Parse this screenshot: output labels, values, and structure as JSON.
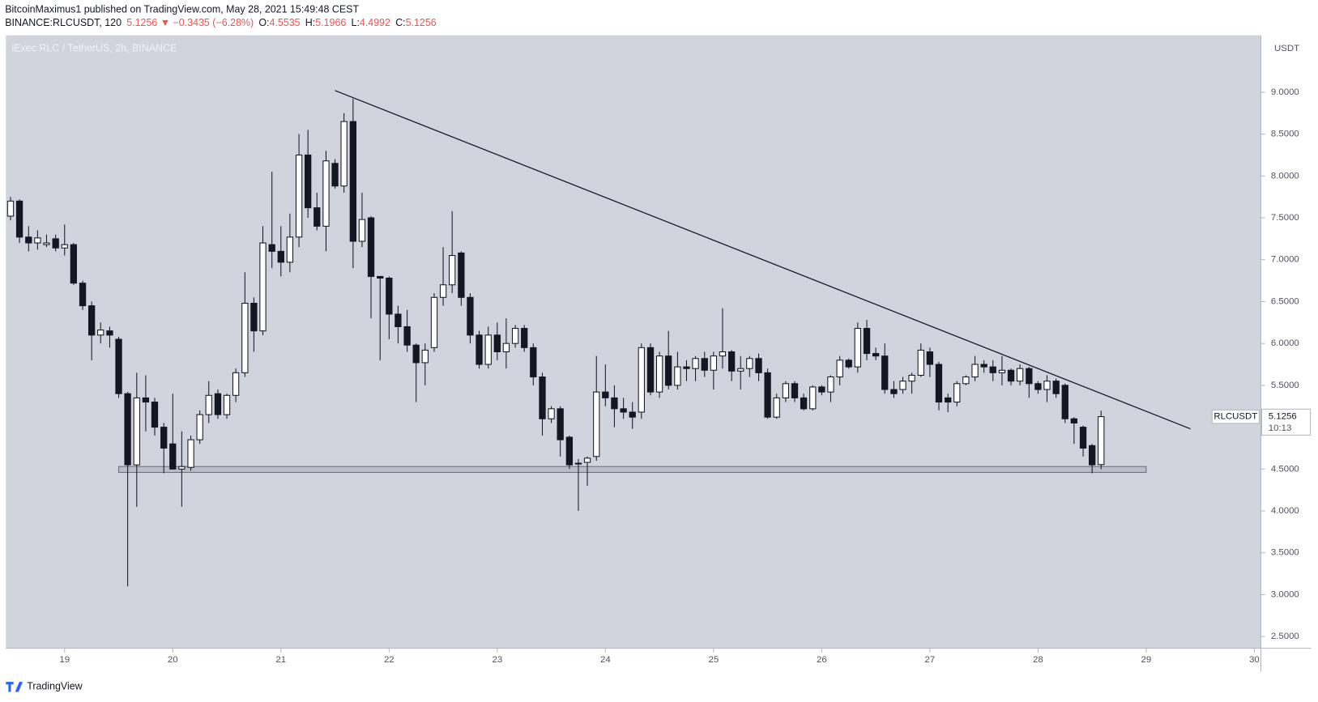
{
  "header": {
    "author_line": "BitcoinMaximus1 published on TradingView.com, May 28, 2021 15:49:48 CEST",
    "symbol": "BINANCE:RLCUSDT, 120",
    "price_change": "5.1256 ▼ −0.3435 (−6.28%)",
    "ohlc": [
      {
        "label": "O:",
        "value": "4.5535"
      },
      {
        "label": "H:",
        "value": "5.1966"
      },
      {
        "label": "L:",
        "value": "4.4992"
      },
      {
        "label": "C:",
        "value": "5.1256"
      }
    ]
  },
  "footer": {
    "brand": "TradingView"
  },
  "chart_data": {
    "type": "candlestick",
    "title": "iExec RLC / TetherUS, 2h, BINANCE",
    "currency": "USDT",
    "x": [
      18.5,
      18.583,
      18.667,
      18.75,
      18.833,
      18.917,
      19,
      19.083,
      19.167,
      19.25,
      19.333,
      19.417,
      19.5,
      19.583,
      19.667,
      19.75,
      19.833,
      19.917,
      20,
      20.083,
      20.167,
      20.25,
      20.333,
      20.417,
      20.5,
      20.583,
      20.667,
      20.75,
      20.833,
      20.917,
      21,
      21.083,
      21.167,
      21.25,
      21.333,
      21.417,
      21.5,
      21.583,
      21.667,
      21.75,
      21.833,
      21.917,
      22,
      22.083,
      22.167,
      22.25,
      22.333,
      22.417,
      22.5,
      22.583,
      22.667,
      22.75,
      22.833,
      22.917,
      23,
      23.083,
      23.167,
      23.25,
      23.333,
      23.417,
      23.5,
      23.583,
      23.667,
      23.75,
      23.833,
      23.917,
      24,
      24.083,
      24.167,
      24.25,
      24.333,
      24.417,
      24.5,
      24.583,
      24.667,
      24.75,
      24.833,
      24.917,
      25,
      25.083,
      25.167,
      25.25,
      25.333,
      25.417,
      25.5,
      25.583,
      25.667,
      25.75,
      25.833,
      25.917,
      26,
      26.083,
      26.167,
      26.25,
      26.333,
      26.417,
      26.5,
      26.583,
      26.667,
      26.75,
      26.833,
      26.917,
      27,
      27.083,
      27.167,
      27.25,
      27.333,
      27.417,
      27.5,
      27.583,
      27.667,
      27.75,
      27.833,
      27.917,
      28,
      28.083,
      28.167,
      28.25,
      28.333,
      28.417,
      28.5,
      28.583
    ],
    "open": [
      7.52,
      7.7,
      7.27,
      7.2,
      7.18,
      7.25,
      7.14,
      7.18,
      6.72,
      6.45,
      6.1,
      6.15,
      6.05,
      5.4,
      4.55,
      5.35,
      5.3,
      5.0,
      4.8,
      4.5,
      4.52,
      4.85,
      5.15,
      5.4,
      5.15,
      5.38,
      5.65,
      6.48,
      6.15,
      7.18,
      7.1,
      6.97,
      7.27,
      8.25,
      7.62,
      7.4,
      8.15,
      7.88,
      8.65,
      7.22,
      7.5,
      6.8,
      6.78,
      6.35,
      6.2,
      5.98,
      5.77,
      5.95,
      6.55,
      6.7,
      7.08,
      6.55,
      6.1,
      5.75,
      6.1,
      5.9,
      6.0,
      6.18,
      5.95,
      5.6,
      5.1,
      5.22,
      4.88,
      4.57,
      4.58,
      4.65,
      5.42,
      5.35,
      5.22,
      5.18,
      5.18,
      5.95,
      5.42,
      5.85,
      5.5,
      5.72,
      5.7,
      5.82,
      5.68,
      5.85,
      5.9,
      5.67,
      5.7,
      5.82,
      5.65,
      5.12,
      5.35,
      5.52,
      5.35,
      5.22,
      5.48,
      5.42,
      5.6,
      5.8,
      5.72,
      6.18,
      5.88,
      5.85,
      5.45,
      5.45,
      5.55,
      5.62,
      5.9,
      5.75,
      5.35,
      5.3,
      5.52,
      5.6,
      5.75,
      5.72,
      5.65,
      5.68,
      5.55,
      5.7,
      5.52,
      5.45,
      5.55,
      5.5,
      5.1,
      5.0,
      4.78,
      4.5535
    ],
    "high": [
      7.75,
      7.72,
      7.4,
      7.35,
      7.3,
      7.3,
      7.42,
      7.2,
      6.75,
      6.5,
      6.25,
      6.2,
      6.08,
      5.42,
      5.65,
      5.62,
      5.35,
      5.05,
      5.4,
      4.95,
      4.9,
      5.2,
      5.55,
      5.45,
      5.4,
      5.7,
      6.85,
      6.55,
      7.4,
      8.05,
      7.4,
      7.55,
      8.5,
      8.55,
      7.8,
      8.3,
      8.2,
      8.75,
      8.92,
      7.8,
      7.52,
      6.8,
      6.8,
      6.45,
      6.4,
      6.0,
      6.0,
      6.6,
      7.15,
      7.58,
      7.1,
      6.6,
      6.15,
      6.2,
      6.25,
      6.3,
      6.22,
      6.22,
      6.0,
      5.65,
      5.25,
      5.25,
      4.9,
      4.62,
      4.65,
      5.85,
      5.75,
      5.5,
      5.35,
      5.3,
      6.0,
      6.0,
      5.9,
      6.15,
      5.9,
      5.8,
      5.85,
      5.9,
      5.9,
      6.42,
      5.92,
      5.85,
      5.85,
      5.88,
      5.7,
      5.4,
      5.55,
      5.55,
      5.4,
      5.5,
      5.5,
      5.62,
      5.85,
      5.82,
      6.25,
      6.28,
      5.95,
      6.0,
      5.55,
      5.6,
      5.65,
      6.0,
      5.95,
      5.78,
      5.4,
      5.55,
      5.62,
      5.85,
      5.8,
      5.8,
      5.85,
      5.7,
      5.75,
      5.72,
      5.55,
      5.62,
      5.58,
      5.52,
      5.12,
      5.02,
      4.8,
      5.1966
    ],
    "low": [
      7.47,
      7.2,
      7.1,
      7.12,
      7.15,
      7.1,
      7.05,
      6.7,
      6.4,
      5.8,
      6.0,
      5.95,
      5.35,
      3.1,
      4.05,
      4.95,
      4.9,
      4.45,
      4.5,
      4.05,
      4.48,
      4.8,
      5.05,
      5.1,
      5.1,
      5.3,
      5.6,
      5.9,
      6.1,
      6.9,
      6.8,
      6.85,
      7.15,
      7.5,
      7.35,
      7.1,
      7.85,
      7.8,
      6.9,
      7.15,
      6.3,
      5.8,
      6.05,
      6.0,
      5.9,
      5.3,
      5.5,
      5.9,
      6.45,
      6.6,
      6.45,
      6.0,
      5.7,
      5.7,
      5.8,
      5.7,
      5.95,
      5.9,
      5.5,
      4.9,
      5.05,
      4.65,
      4.5,
      4.0,
      4.3,
      4.6,
      5.25,
      5.0,
      5.1,
      4.98,
      5.1,
      5.38,
      5.35,
      5.45,
      5.45,
      5.55,
      5.55,
      5.6,
      5.45,
      5.7,
      5.55,
      5.45,
      5.6,
      5.55,
      5.1,
      5.1,
      5.3,
      5.3,
      5.2,
      5.2,
      5.38,
      5.3,
      5.5,
      5.7,
      5.65,
      5.8,
      5.8,
      5.4,
      5.35,
      5.4,
      5.4,
      5.6,
      5.6,
      5.2,
      5.18,
      5.25,
      5.5,
      5.55,
      5.65,
      5.55,
      5.5,
      5.5,
      5.5,
      5.35,
      5.4,
      5.3,
      5.35,
      5.05,
      4.8,
      4.65,
      4.45,
      4.4992
    ],
    "close": [
      7.7,
      7.27,
      7.2,
      7.26,
      7.2,
      7.14,
      7.18,
      6.72,
      6.45,
      6.1,
      6.16,
      6.1,
      5.4,
      4.55,
      5.35,
      5.3,
      5.0,
      4.75,
      4.5,
      4.53,
      4.85,
      5.15,
      5.38,
      5.15,
      5.38,
      5.65,
      6.48,
      6.15,
      7.2,
      7.1,
      6.97,
      7.27,
      8.25,
      7.62,
      7.4,
      8.18,
      7.88,
      8.65,
      7.22,
      7.48,
      6.8,
      6.78,
      6.35,
      6.2,
      5.98,
      5.77,
      5.92,
      6.55,
      6.7,
      7.05,
      6.55,
      6.1,
      5.75,
      6.1,
      5.9,
      6.0,
      6.18,
      5.95,
      5.6,
      5.1,
      5.22,
      4.85,
      4.55,
      4.56,
      4.63,
      5.42,
      5.35,
      5.22,
      5.18,
      5.12,
      5.95,
      5.42,
      5.85,
      5.5,
      5.72,
      5.7,
      5.82,
      5.68,
      5.85,
      5.9,
      5.67,
      5.7,
      5.82,
      5.65,
      5.12,
      5.35,
      5.52,
      5.35,
      5.22,
      5.48,
      5.42,
      5.6,
      5.8,
      5.72,
      6.18,
      5.88,
      5.85,
      5.45,
      5.4,
      5.55,
      5.62,
      5.92,
      5.75,
      5.3,
      5.3,
      5.52,
      5.6,
      5.75,
      5.72,
      5.65,
      5.68,
      5.55,
      5.7,
      5.52,
      5.45,
      5.55,
      5.4,
      5.1,
      5.05,
      4.75,
      4.55,
      5.1256
    ],
    "up_color": "#ffffff",
    "down_color": "#131722",
    "background": "#d1d4dc",
    "xlim": [
      18.457,
      30.06
    ],
    "xticks": [
      19,
      20,
      21,
      22,
      23,
      24,
      25,
      26,
      27,
      28,
      29,
      30
    ],
    "ylim": [
      2.36,
      9.68
    ],
    "yticks": [
      {
        "value": 2.5,
        "label": "2.5000"
      },
      {
        "value": 3,
        "label": "3.0000"
      },
      {
        "value": 3.5,
        "label": "3.5000"
      },
      {
        "value": 4,
        "label": "4.0000"
      },
      {
        "value": 4.5,
        "label": "4.5000"
      },
      {
        "value": 5,
        "label": "5.0000"
      },
      {
        "value": 5.5,
        "label": "5.5000"
      },
      {
        "value": 6,
        "label": "6.0000"
      },
      {
        "value": 6.5,
        "label": "6.5000"
      },
      {
        "value": 7,
        "label": "7.0000"
      },
      {
        "value": 7.5,
        "label": "7.5000"
      },
      {
        "value": 8,
        "label": "8.0000"
      },
      {
        "value": 8.5,
        "label": "8.5000"
      },
      {
        "value": 9,
        "label": "9.0000"
      }
    ],
    "trendline": {
      "x": [
        21.5,
        29.41
      ],
      "y": [
        9.02,
        4.98
      ]
    },
    "support_zone": {
      "x": [
        19.5,
        29.0
      ],
      "y": [
        4.46,
        4.53
      ]
    },
    "last_price": {
      "symbol": "RLCUSDT",
      "price": "5.1256",
      "countdown": "10:13"
    }
  }
}
